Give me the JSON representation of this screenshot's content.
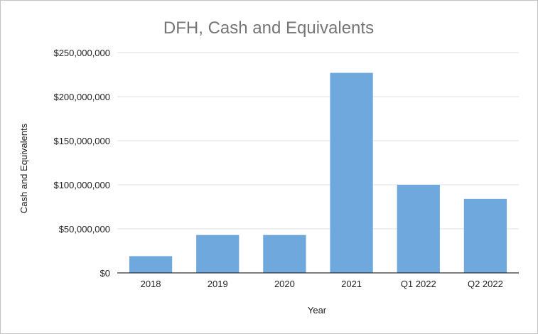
{
  "chart_data": {
    "type": "bar",
    "title": "DFH, Cash and Equivalents",
    "xlabel": "Year",
    "ylabel": "Cash and Equivalents",
    "categories": [
      "2018",
      "2019",
      "2020",
      "2021",
      "Q1 2022",
      "Q2 2022"
    ],
    "values": [
      19000000,
      43000000,
      43000000,
      227000000,
      100000000,
      84000000
    ],
    "ylim": [
      0,
      250000000
    ],
    "yticks": [
      0,
      50000000,
      100000000,
      150000000,
      200000000,
      250000000
    ],
    "ytick_labels": [
      "$0",
      "$50,000,000",
      "$100,000,000",
      "$150,000,000",
      "$200,000,000",
      "$250,000,000"
    ],
    "grid": true,
    "legend": "none",
    "bar_color": "#6fa8dc"
  }
}
